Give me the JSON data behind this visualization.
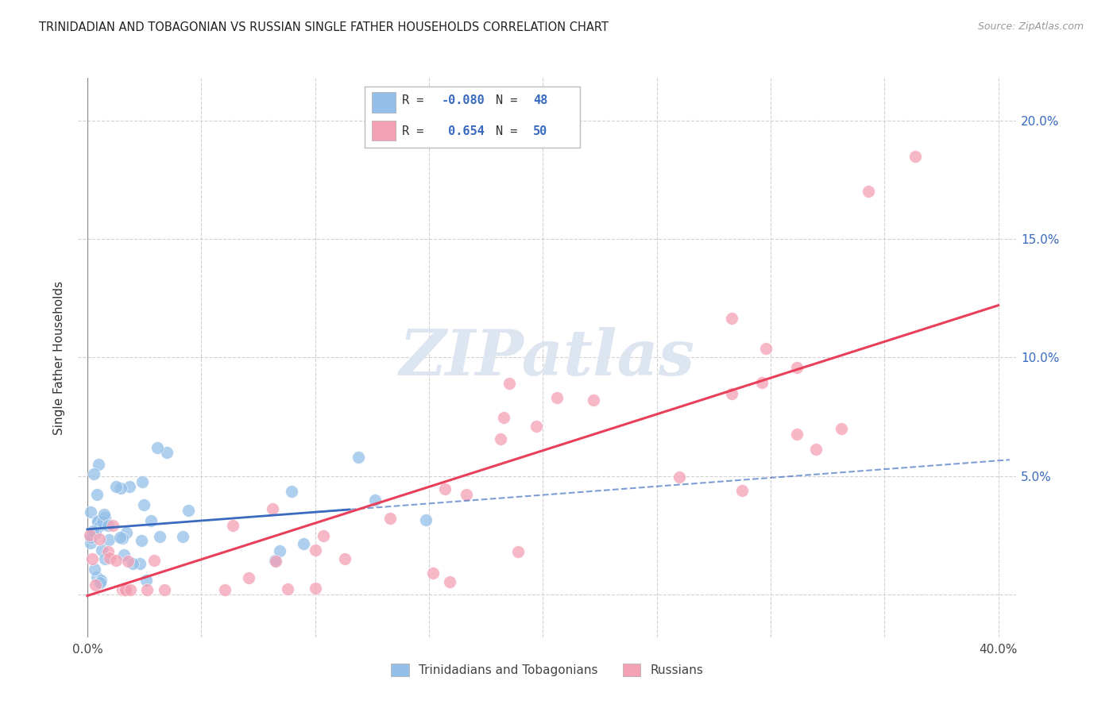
{
  "title": "TRINIDADIAN AND TOBAGONIAN VS RUSSIAN SINGLE FATHER HOUSEHOLDS CORRELATION CHART",
  "source": "Source: ZipAtlas.com",
  "ylabel": "Single Father Households",
  "legend_label1": "Trinidadians and Tobagonians",
  "legend_label2": "Russians",
  "blue_color": "#93bfe8",
  "pink_color": "#f4a0b5",
  "blue_line_color": "#3a6abf",
  "pink_line_color": "#e8405a",
  "r_color": "#3a6abf",
  "watermark": "ZIPatlas",
  "background_color": "#ffffff",
  "grid_color": "#cccccc",
  "R_blue": -0.08,
  "N_blue": 48,
  "R_pink": 0.654,
  "N_pink": 50
}
